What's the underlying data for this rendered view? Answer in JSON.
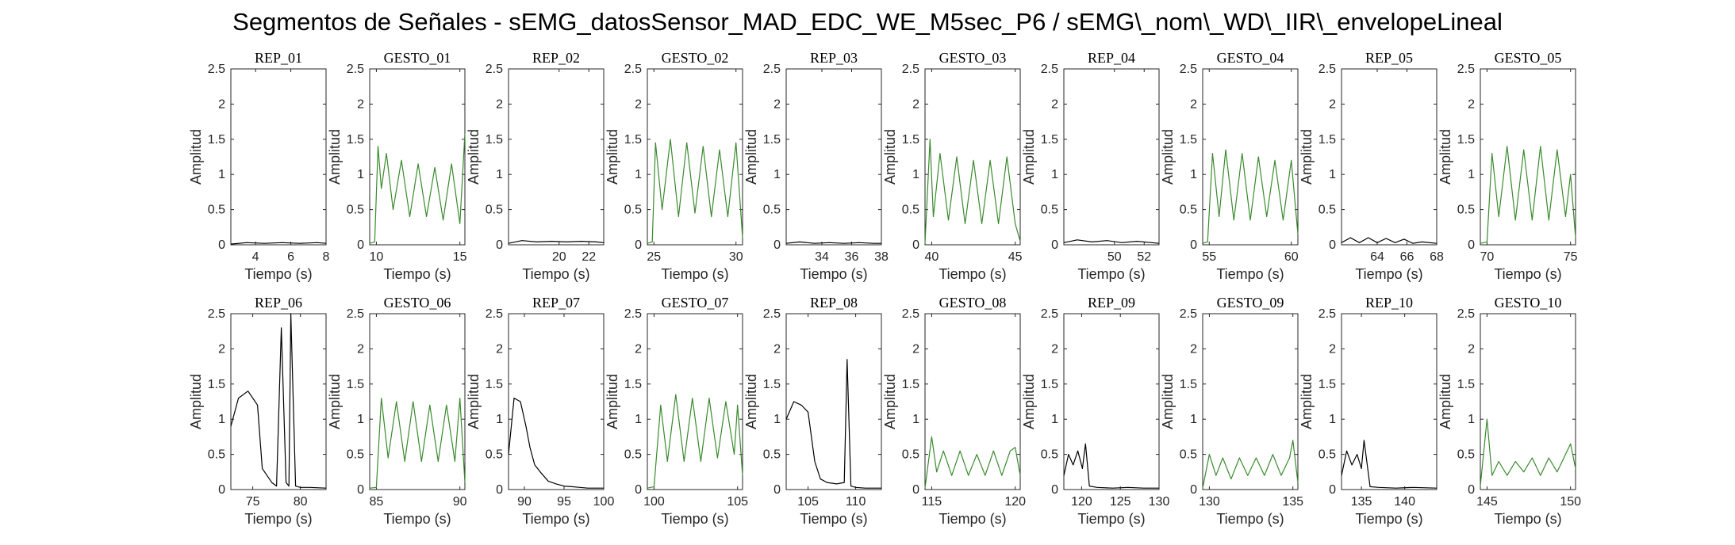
{
  "title": "Segmentos de Señales - sEMG_datosSensor_MAD_EDC_WE_M5sec_P6 / sEMG\\_nom\\_WD\\_IIR\\_envelopeLineal",
  "colors": {
    "rep": "#000000",
    "gesto": "#3a8a2e",
    "axes": "#262626"
  },
  "chart_data": [
    {
      "type": "line",
      "title": "REP_01",
      "kind": "rep",
      "xlabel": "Tiempo (s)",
      "ylabel": "Amplitud",
      "xlim": [
        2.6,
        8
      ],
      "ylim": [
        0,
        2.5
      ],
      "xticks": [
        4,
        6,
        8
      ],
      "yticks": [
        0,
        0.5,
        1,
        1.5,
        2,
        2.5
      ],
      "x": [
        2.6,
        3.5,
        4.5,
        5.5,
        6.5,
        7.5,
        8
      ],
      "y": [
        0.01,
        0.03,
        0.02,
        0.03,
        0.02,
        0.03,
        0.02
      ]
    },
    {
      "type": "line",
      "title": "GESTO_01",
      "kind": "gesto",
      "xlabel": "Tiempo (s)",
      "ylabel": "Amplitud",
      "xlim": [
        9.6,
        15.3
      ],
      "ylim": [
        0,
        2.5
      ],
      "xticks": [
        10,
        15
      ],
      "yticks": [
        0,
        0.5,
        1,
        1.5,
        2,
        2.5
      ],
      "x": [
        9.6,
        9.9,
        10.1,
        10.3,
        10.6,
        11.0,
        11.5,
        12.0,
        12.5,
        13.0,
        13.5,
        14.0,
        14.5,
        15.0,
        15.3
      ],
      "y": [
        0.02,
        0.04,
        1.4,
        0.8,
        1.3,
        0.5,
        1.2,
        0.4,
        1.15,
        0.4,
        1.1,
        0.35,
        1.15,
        0.3,
        1.58
      ]
    },
    {
      "type": "line",
      "title": "REP_02",
      "kind": "rep",
      "xlabel": "Tiempo (s)",
      "ylabel": "Amplitud",
      "xlim": [
        16.6,
        23
      ],
      "ylim": [
        0,
        2.5
      ],
      "xticks": [
        20,
        22
      ],
      "yticks": [
        0,
        0.5,
        1,
        1.5,
        2,
        2.5
      ],
      "x": [
        16.6,
        17.5,
        18.5,
        19.5,
        20.5,
        21.5,
        22.5,
        23
      ],
      "y": [
        0.02,
        0.06,
        0.04,
        0.05,
        0.04,
        0.05,
        0.04,
        0.03
      ]
    },
    {
      "type": "line",
      "title": "GESTO_02",
      "kind": "gesto",
      "xlabel": "Tiempo (s)",
      "ylabel": "Amplitud",
      "xlim": [
        24.6,
        30.4
      ],
      "ylim": [
        0,
        2.5
      ],
      "xticks": [
        25,
        30
      ],
      "yticks": [
        0,
        0.5,
        1,
        1.5,
        2,
        2.5
      ],
      "x": [
        24.6,
        24.9,
        25.1,
        25.5,
        26.0,
        26.5,
        27.0,
        27.5,
        28.0,
        28.5,
        29.0,
        29.5,
        30.0,
        30.4
      ],
      "y": [
        0.02,
        0.04,
        1.45,
        0.5,
        1.5,
        0.4,
        1.45,
        0.45,
        1.4,
        0.4,
        1.35,
        0.4,
        1.45,
        0.1
      ]
    },
    {
      "type": "line",
      "title": "REP_03",
      "kind": "rep",
      "xlabel": "Tiempo (s)",
      "ylabel": "Amplitud",
      "xlim": [
        31.6,
        38
      ],
      "ylim": [
        0,
        2.5
      ],
      "xticks": [
        34,
        36,
        38
      ],
      "yticks": [
        0,
        0.5,
        1,
        1.5,
        2,
        2.5
      ],
      "x": [
        31.6,
        32.5,
        33.5,
        34.5,
        35.5,
        36.5,
        37.5,
        38
      ],
      "y": [
        0.02,
        0.04,
        0.02,
        0.03,
        0.02,
        0.03,
        0.02,
        0.02
      ]
    },
    {
      "type": "line",
      "title": "GESTO_03",
      "kind": "gesto",
      "xlabel": "Tiempo (s)",
      "ylabel": "Amplitud",
      "xlim": [
        39.6,
        45.3
      ],
      "ylim": [
        0,
        2.5
      ],
      "xticks": [
        40,
        45
      ],
      "yticks": [
        0,
        0.5,
        1,
        1.5,
        2,
        2.5
      ],
      "x": [
        39.6,
        39.9,
        40.1,
        40.5,
        41.0,
        41.5,
        42.0,
        42.5,
        43.0,
        43.5,
        44.0,
        44.5,
        45.0,
        45.3
      ],
      "y": [
        0.02,
        1.5,
        0.4,
        1.3,
        0.35,
        1.25,
        0.3,
        1.2,
        0.3,
        1.2,
        0.3,
        1.25,
        0.3,
        0.05
      ]
    },
    {
      "type": "line",
      "title": "REP_04",
      "kind": "rep",
      "xlabel": "Tiempo (s)",
      "ylabel": "Amplitud",
      "xlim": [
        46.6,
        53
      ],
      "ylim": [
        0,
        2.5
      ],
      "xticks": [
        50,
        52
      ],
      "yticks": [
        0,
        0.5,
        1,
        1.5,
        2,
        2.5
      ],
      "x": [
        46.6,
        47.5,
        48.5,
        49.5,
        50.5,
        51.5,
        52.5,
        53
      ],
      "y": [
        0.03,
        0.07,
        0.04,
        0.06,
        0.03,
        0.05,
        0.03,
        0.02
      ]
    },
    {
      "type": "line",
      "title": "GESTO_04",
      "kind": "gesto",
      "xlabel": "Tiempo (s)",
      "ylabel": "Amplitud",
      "xlim": [
        54.6,
        60.4
      ],
      "ylim": [
        0,
        2.5
      ],
      "xticks": [
        55,
        60
      ],
      "yticks": [
        0,
        0.5,
        1,
        1.5,
        2,
        2.5
      ],
      "x": [
        54.6,
        54.9,
        55.2,
        55.6,
        56.0,
        56.5,
        57.0,
        57.5,
        58.0,
        58.5,
        59.0,
        59.5,
        60.0,
        60.4
      ],
      "y": [
        0.02,
        0.04,
        1.3,
        0.4,
        1.35,
        0.35,
        1.3,
        0.35,
        1.25,
        0.4,
        1.2,
        0.35,
        1.2,
        0.15
      ]
    },
    {
      "type": "line",
      "title": "REP_05",
      "kind": "rep",
      "xlabel": "Tiempo (s)",
      "ylabel": "Amplitud",
      "xlim": [
        61.6,
        68
      ],
      "ylim": [
        0,
        2.5
      ],
      "xticks": [
        64,
        66,
        68
      ],
      "yticks": [
        0,
        0.5,
        1,
        1.5,
        2,
        2.5
      ],
      "x": [
        61.6,
        62.2,
        62.8,
        63.4,
        64.0,
        64.6,
        65.2,
        65.8,
        66.4,
        67.0,
        68
      ],
      "y": [
        0.03,
        0.1,
        0.03,
        0.1,
        0.03,
        0.09,
        0.03,
        0.08,
        0.02,
        0.04,
        0.02
      ]
    },
    {
      "type": "line",
      "title": "GESTO_05",
      "kind": "gesto",
      "xlabel": "Tiempo (s)",
      "ylabel": "Amplitud",
      "xlim": [
        69.6,
        75.3
      ],
      "ylim": [
        0,
        2.5
      ],
      "xticks": [
        70,
        75
      ],
      "yticks": [
        0,
        0.5,
        1,
        1.5,
        2,
        2.5
      ],
      "x": [
        69.6,
        70.0,
        70.3,
        70.7,
        71.2,
        71.7,
        72.2,
        72.7,
        73.2,
        73.7,
        74.2,
        74.7,
        75.0,
        75.3
      ],
      "y": [
        0.02,
        0.04,
        1.3,
        0.4,
        1.4,
        0.35,
        1.35,
        0.35,
        1.4,
        0.35,
        1.35,
        0.4,
        1.0,
        0.1
      ]
    },
    {
      "type": "line",
      "title": "REP_06",
      "kind": "rep",
      "xlabel": "Tiempo (s)",
      "ylabel": "Amplitud",
      "xlim": [
        72.7,
        82.7
      ],
      "ylim": [
        0,
        2.5
      ],
      "xticks": [
        75,
        80
      ],
      "yticks": [
        0,
        0.5,
        1,
        1.5,
        2,
        2.5
      ],
      "x": [
        72.7,
        73.5,
        74.5,
        75.5,
        76.0,
        77.0,
        77.5,
        78.0,
        78.5,
        78.8,
        79.0,
        79.5,
        80.0,
        81.0,
        82.7
      ],
      "y": [
        0.9,
        1.3,
        1.4,
        1.2,
        0.3,
        0.1,
        0.05,
        2.3,
        0.1,
        0.05,
        2.5,
        0.05,
        0.03,
        0.03,
        0.02
      ]
    },
    {
      "type": "line",
      "title": "GESTO_06",
      "kind": "gesto",
      "xlabel": "Tiempo (s)",
      "ylabel": "Amplitud",
      "xlim": [
        84.6,
        90.3
      ],
      "ylim": [
        0,
        2.5
      ],
      "xticks": [
        85,
        90
      ],
      "yticks": [
        0,
        0.5,
        1,
        1.5,
        2,
        2.5
      ],
      "x": [
        84.6,
        85.0,
        85.3,
        85.7,
        86.2,
        86.7,
        87.2,
        87.7,
        88.2,
        88.7,
        89.2,
        89.7,
        90.0,
        90.3
      ],
      "y": [
        0.02,
        0.03,
        1.3,
        0.45,
        1.25,
        0.4,
        1.25,
        0.4,
        1.2,
        0.4,
        1.2,
        0.4,
        1.3,
        0.1
      ]
    },
    {
      "type": "line",
      "title": "REP_07",
      "kind": "rep",
      "xlabel": "Tiempo (s)",
      "ylabel": "Amplitud",
      "xlim": [
        88,
        100
      ],
      "ylim": [
        0,
        2.5
      ],
      "xticks": [
        90,
        95,
        100
      ],
      "yticks": [
        0,
        0.5,
        1,
        1.5,
        2,
        2.5
      ],
      "x": [
        88,
        88.7,
        89.5,
        90.2,
        90.7,
        91.3,
        92,
        93,
        94,
        95,
        96,
        97,
        98,
        100
      ],
      "y": [
        0.5,
        1.3,
        1.25,
        0.9,
        0.6,
        0.35,
        0.25,
        0.12,
        0.08,
        0.05,
        0.04,
        0.03,
        0.02,
        0.02
      ]
    },
    {
      "type": "line",
      "title": "GESTO_07",
      "kind": "gesto",
      "xlabel": "Tiempo (s)",
      "ylabel": "Amplitud",
      "xlim": [
        99.6,
        105.3
      ],
      "ylim": [
        0,
        2.5
      ],
      "xticks": [
        100,
        105
      ],
      "yticks": [
        0,
        0.5,
        1,
        1.5,
        2,
        2.5
      ],
      "x": [
        99.6,
        100.0,
        100.4,
        100.8,
        101.3,
        101.8,
        102.3,
        102.8,
        103.3,
        103.8,
        104.3,
        104.8,
        105.0,
        105.3
      ],
      "y": [
        0.02,
        0.04,
        1.2,
        0.4,
        1.35,
        0.4,
        1.3,
        0.4,
        1.3,
        0.45,
        1.25,
        0.5,
        1.2,
        0.2
      ]
    },
    {
      "type": "line",
      "title": "REP_08",
      "kind": "rep",
      "xlabel": "Tiempo (s)",
      "ylabel": "Amplitud",
      "xlim": [
        102.7,
        112.7
      ],
      "ylim": [
        0,
        2.5
      ],
      "xticks": [
        105,
        110
      ],
      "yticks": [
        0,
        0.5,
        1,
        1.5,
        2,
        2.5
      ],
      "x": [
        102.7,
        103.5,
        104.3,
        105.0,
        105.7,
        106.3,
        107.0,
        108.0,
        108.8,
        109.1,
        109.5,
        110.0,
        111.0,
        112.7
      ],
      "y": [
        1.0,
        1.25,
        1.2,
        1.1,
        0.4,
        0.15,
        0.1,
        0.08,
        0.1,
        1.85,
        0.05,
        0.03,
        0.02,
        0.02
      ]
    },
    {
      "type": "line",
      "title": "GESTO_08",
      "kind": "gesto",
      "xlabel": "Tiempo (s)",
      "ylabel": "Amplitud",
      "xlim": [
        114.6,
        120.3
      ],
      "ylim": [
        0,
        2.5
      ],
      "xticks": [
        115,
        120
      ],
      "yticks": [
        0,
        0.5,
        1,
        1.5,
        2,
        2.5
      ],
      "x": [
        114.6,
        115.0,
        115.3,
        115.7,
        116.2,
        116.7,
        117.2,
        117.7,
        118.2,
        118.7,
        119.2,
        119.7,
        120.0,
        120.3
      ],
      "y": [
        0.02,
        0.75,
        0.25,
        0.55,
        0.2,
        0.55,
        0.2,
        0.5,
        0.2,
        0.55,
        0.2,
        0.55,
        0.6,
        0.2
      ]
    },
    {
      "type": "line",
      "title": "REP_09",
      "kind": "rep",
      "xlabel": "Tiempo (s)",
      "ylabel": "Amplitud",
      "xlim": [
        117.7,
        130
      ],
      "ylim": [
        0,
        2.5
      ],
      "xticks": [
        120,
        125,
        130
      ],
      "yticks": [
        0,
        0.5,
        1,
        1.5,
        2,
        2.5
      ],
      "x": [
        117.7,
        118.3,
        118.9,
        119.5,
        120.1,
        120.5,
        121,
        122,
        124,
        126,
        128,
        130
      ],
      "y": [
        0.2,
        0.5,
        0.35,
        0.55,
        0.3,
        0.65,
        0.05,
        0.03,
        0.02,
        0.03,
        0.02,
        0.02
      ]
    },
    {
      "type": "line",
      "title": "GESTO_09",
      "kind": "gesto",
      "xlabel": "Tiempo (s)",
      "ylabel": "Amplitud",
      "xlim": [
        129.6,
        135.3
      ],
      "ylim": [
        0,
        2.5
      ],
      "xticks": [
        130,
        135
      ],
      "yticks": [
        0,
        0.5,
        1,
        1.5,
        2,
        2.5
      ],
      "x": [
        129.6,
        130.0,
        130.4,
        130.8,
        131.3,
        131.8,
        132.3,
        132.8,
        133.3,
        133.8,
        134.3,
        134.8,
        135.0,
        135.3
      ],
      "y": [
        0.02,
        0.5,
        0.2,
        0.45,
        0.15,
        0.45,
        0.2,
        0.45,
        0.2,
        0.5,
        0.2,
        0.45,
        0.7,
        0.1
      ]
    },
    {
      "type": "line",
      "title": "REP_10",
      "kind": "rep",
      "xlabel": "Tiempo (s)",
      "ylabel": "Amplitud",
      "xlim": [
        132.7,
        143.7
      ],
      "ylim": [
        0,
        2.5
      ],
      "xticks": [
        135,
        140
      ],
      "yticks": [
        0,
        0.5,
        1,
        1.5,
        2,
        2.5
      ],
      "x": [
        132.7,
        133.3,
        133.9,
        134.5,
        135.0,
        135.3,
        136,
        137,
        139,
        141,
        143.7
      ],
      "y": [
        0.2,
        0.55,
        0.35,
        0.5,
        0.3,
        0.7,
        0.04,
        0.03,
        0.02,
        0.03,
        0.02
      ]
    },
    {
      "type": "line",
      "title": "GESTO_10",
      "kind": "gesto",
      "xlabel": "Tiempo (s)",
      "ylabel": "Amplitud",
      "xlim": [
        144.6,
        150.3
      ],
      "ylim": [
        0,
        2.5
      ],
      "xticks": [
        145,
        150
      ],
      "yticks": [
        0,
        0.5,
        1,
        1.5,
        2,
        2.5
      ],
      "x": [
        144.6,
        145.0,
        145.3,
        145.7,
        146.2,
        146.7,
        147.2,
        147.7,
        148.2,
        148.7,
        149.2,
        149.7,
        150.0,
        150.3
      ],
      "y": [
        0.05,
        1.0,
        0.2,
        0.4,
        0.2,
        0.4,
        0.25,
        0.45,
        0.2,
        0.45,
        0.25,
        0.5,
        0.65,
        0.3
      ]
    }
  ]
}
